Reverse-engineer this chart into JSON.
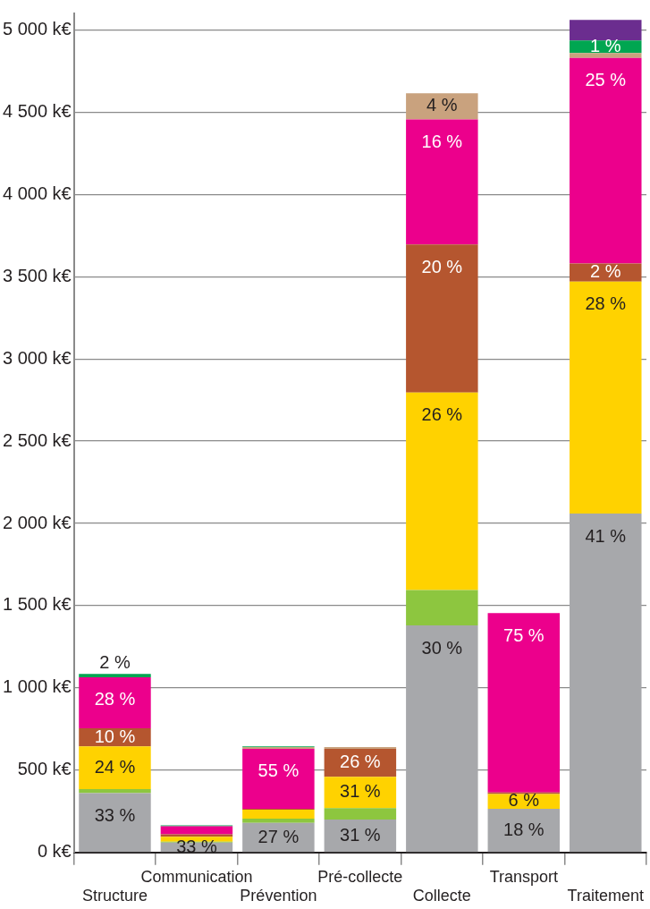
{
  "chart_data": {
    "type": "bar",
    "stacked": true,
    "categories": [
      "Structure",
      "Communication",
      "Prévention",
      "Pré-collecte",
      "Collecte",
      "Transport",
      "Traitement"
    ],
    "series": [
      {
        "color": "#a7a8ab",
        "values": [
          360,
          60,
          180,
          200,
          1380,
          265,
          2060
        ]
      },
      {
        "color": "#8dc63f",
        "values": [
          25,
          5,
          25,
          70,
          215,
          null,
          null
        ]
      },
      {
        "color": "#ffd200",
        "values": [
          260,
          30,
          55,
          190,
          1200,
          90,
          1410
        ]
      },
      {
        "color": "#b5562f",
        "values": [
          110,
          15,
          5,
          170,
          900,
          10,
          110
        ]
      },
      {
        "color": "#ec008c",
        "values": [
          310,
          50,
          365,
          null,
          760,
          1090,
          1250
        ]
      },
      {
        "color": "#c9a27e",
        "values": [
          null,
          null,
          10,
          10,
          160,
          null,
          30
        ]
      },
      {
        "color": "#00a651",
        "values": [
          20,
          5,
          5,
          null,
          null,
          null,
          75
        ]
      },
      {
        "color": "#6b2d8f",
        "values": [
          null,
          null,
          null,
          null,
          null,
          null,
          125
        ]
      }
    ],
    "annotations": [
      {
        "text": "33 %",
        "x": "Structure",
        "y": 360
      },
      {
        "text": "24 %",
        "x": "Structure",
        "y": 645
      },
      {
        "text": "10 %",
        "x": "Structure",
        "y": 755
      },
      {
        "text": "28 %",
        "x": "Structure",
        "y": 1065
      },
      {
        "text": "2 %",
        "x": "Structure",
        "y": 1085
      },
      {
        "text": "33 %",
        "x": "Communication",
        "y": 60
      },
      {
        "text": "27 %",
        "x": "Prévention",
        "y": 180
      },
      {
        "text": "55 %",
        "x": "Prévention",
        "y": 630
      },
      {
        "text": "31 %",
        "x": "Pré-collecte",
        "y": 200
      },
      {
        "text": "31 %",
        "x": "Pré-collecte",
        "y": 460
      },
      {
        "text": "26 %",
        "x": "Pré-collecte",
        "y": 630
      },
      {
        "text": "30 %",
        "x": "Collecte",
        "y": 1380
      },
      {
        "text": "26 %",
        "x": "Collecte",
        "y": 2795
      },
      {
        "text": "20 %",
        "x": "Collecte",
        "y": 3695
      },
      {
        "text": "16 %",
        "x": "Collecte",
        "y": 4455
      },
      {
        "text": "4 %",
        "x": "Collecte",
        "y": 4615
      },
      {
        "text": "18 %",
        "x": "Transport",
        "y": 265
      },
      {
        "text": "6 %",
        "x": "Transport",
        "y": 355
      },
      {
        "text": "75 %",
        "x": "Transport",
        "y": 1455
      },
      {
        "text": "41 %",
        "x": "Traitement",
        "y": 2060
      },
      {
        "text": "28 %",
        "x": "Traitement",
        "y": 3470
      },
      {
        "text": "2 %",
        "x": "Traitement",
        "y": 3580
      },
      {
        "text": "25 %",
        "x": "Traitement",
        "y": 4830
      },
      {
        "text": "1 %",
        "x": "Traitement",
        "y": 4935
      }
    ],
    "ylim": [
      0,
      5100
    ],
    "yticks": [
      {
        "value": 0,
        "label": "0 k€"
      },
      {
        "value": 500,
        "label": "500 k€"
      },
      {
        "value": 1000,
        "label": "1 000 k€"
      },
      {
        "value": 1500,
        "label": "1 500 k€"
      },
      {
        "value": 2000,
        "label": "2 000 k€"
      },
      {
        "value": 2500,
        "label": "2 500 k€"
      },
      {
        "value": 3000,
        "label": "3 000 k€"
      },
      {
        "value": 3500,
        "label": "3 500 k€"
      },
      {
        "value": 4000,
        "label": "4 000 k€"
      },
      {
        "value": 4500,
        "label": "4 500 k€"
      },
      {
        "value": 5000,
        "label": "5 000 k€"
      }
    ],
    "grid": "y",
    "legend": false
  }
}
